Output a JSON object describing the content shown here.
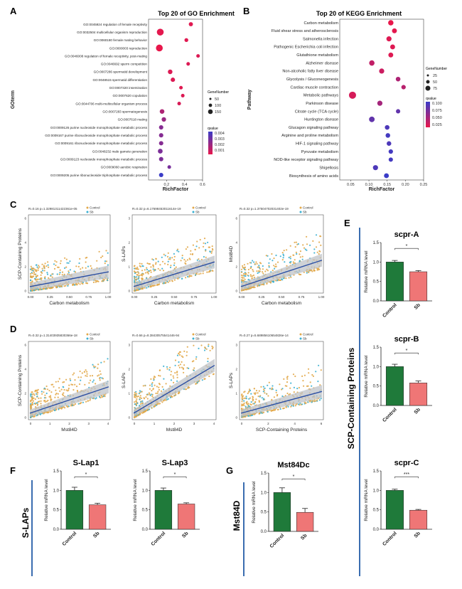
{
  "panels": {
    "A": "A",
    "B": "B",
    "C": "C",
    "D": "D",
    "E": "E",
    "F": "F",
    "G": "G"
  },
  "colors": {
    "qhigh": "#e8174b",
    "qlow": "#3a3cc7",
    "control_pt": "#e2a84a",
    "sb_pt": "#3bb0d2",
    "reg_line": "#2c4fa3",
    "ci": "#bfc3c8",
    "control_bar": "#1f7a3a",
    "sb_bar": "#ef7676",
    "divider": "#3a6db0"
  },
  "go": {
    "title": "Top 20 of GO Enrichment",
    "ylabel": "GOterm",
    "xlabel": "RichFactor",
    "xticks": [
      "0.2",
      "0.4",
      "0.6"
    ],
    "legend_size_title": "GeneNumber",
    "legend_sizes": [
      "50",
      "100",
      "150"
    ],
    "legend_color_title": "qvalue",
    "legend_colors": [
      "0.004",
      "0.003",
      "0.002",
      "0.001"
    ]
  },
  "kegg": {
    "title": "Top 20 of KEGG Enrichment",
    "ylabel": "Pathway",
    "xlabel": "RichFactor",
    "xticks": [
      "0.05",
      "0.10",
      "0.15",
      "0.20",
      "0.25"
    ],
    "legend_size_title": "GeneNumber",
    "legend_sizes": [
      "25",
      "50",
      "75"
    ],
    "legend_color_title": "qvalue",
    "legend_colors": [
      "0.100",
      "0.075",
      "0.050",
      "0.025"
    ]
  },
  "scatter_panels": [
    {
      "id": "C1",
      "stat": "R=0.16 p=1.32981311422361e-05",
      "xlabel": "Carbon metabolism",
      "ylabel": "SCP-Containing Proteins",
      "legend": [
        "Control",
        "Sb"
      ]
    },
    {
      "id": "C2",
      "stat": "R=0.32 p=6.17698453011614e-19",
      "xlabel": "Carbon metabolism",
      "ylabel": "S-LAPs",
      "legend": [
        "Control",
        "Sb"
      ]
    },
    {
      "id": "C3",
      "stat": "R=0.32 p=1.37504702031402e-19",
      "xlabel": "Carbon metabolism",
      "ylabel": "Mst84D",
      "legend": [
        "Control",
        "Sb"
      ]
    },
    {
      "id": "D1",
      "stat": "R=0.32 p=1.31403935830366e-18",
      "xlabel": "Mst84D",
      "ylabel": "SCP-Containing Proteins",
      "legend": [
        "Control",
        "Sb"
      ]
    },
    {
      "id": "D2",
      "stat": "R=0.66 p=8.38430575541446-94",
      "xlabel": "Mst84D",
      "ylabel": "S-LAPs",
      "legend": [
        "Control",
        "Sb"
      ]
    },
    {
      "id": "D3",
      "stat": "R=0.27 p=5.68985610654826e-14",
      "xlabel": "SCP-Containing Proteins",
      "ylabel": "S-LAPs",
      "legend": [
        "Control",
        "Sb"
      ]
    }
  ],
  "bar_common": {
    "ylabel": "Relative mRNA level",
    "categories": [
      "Control",
      "Sb"
    ]
  },
  "group_labels": {
    "scp": "SCP-Containing Proteins",
    "slaps": "S-LAPs",
    "mst": "Mst84D"
  },
  "chart_data": [
    {
      "type": "scatter",
      "title": "Top 20 of GO Enrichment",
      "xlabel": "RichFactor",
      "ylabel": "GOterm",
      "xlim": [
        0,
        0.6
      ],
      "categories": [
        "GO:0045924 regulation of female receptivity",
        "GO:0032504 multicellular organism reproduction",
        "GO:0060180 female mating behavior",
        "GO:0000003 reproduction",
        "GO:0046008 regulation of female receptivity, post-mating",
        "GO:0046692 sperm competition",
        "GO:0007286 spermatid development",
        "GO:0048515 spermatid differentiation",
        "GO:0007320 insemination",
        "GO:0007620 copulation",
        "GO:0044706 multi-multicellular organism process",
        "GO:0007283 spermatogenesis",
        "GO:0007618 mating",
        "GO:0009126 purine nucleoside monophosphate metabolic process",
        "GO:0009167 purine ribonucleoside monophosphate metabolic process",
        "GO:0009161 ribonucleoside monophosphate metabolic process",
        "GO:0048232 male gamete generation",
        "GO:0009123 nucleoside monophosphate metabolic process",
        "GO:0009060 aerobic respiration",
        "GO:0009205 purine ribonucleoside triphosphate metabolic process"
      ],
      "x": [
        0.47,
        0.13,
        0.42,
        0.12,
        0.55,
        0.44,
        0.24,
        0.27,
        0.36,
        0.38,
        0.34,
        0.15,
        0.17,
        0.14,
        0.14,
        0.14,
        0.13,
        0.14,
        0.23,
        0.14
      ],
      "gene_number": [
        35,
        160,
        25,
        160,
        20,
        20,
        50,
        40,
        20,
        20,
        20,
        50,
        45,
        40,
        40,
        40,
        55,
        40,
        20,
        40
      ],
      "qvalue": [
        0.0008,
        0.0007,
        0.0008,
        0.0006,
        0.0009,
        0.0009,
        0.0009,
        0.0009,
        0.0008,
        0.0009,
        0.001,
        0.002,
        0.0025,
        0.003,
        0.003,
        0.003,
        0.0032,
        0.0032,
        0.0033,
        0.0048
      ]
    },
    {
      "type": "scatter",
      "title": "Top 20 of KEGG Enrichment",
      "xlabel": "RichFactor",
      "ylabel": "Pathway",
      "xlim": [
        0.02,
        0.25
      ],
      "categories": [
        "Carbon metabolism",
        "Fluid shear stress and atherosclerosis",
        "Salmonella infection",
        "Pathogenic Escherichia coli infection",
        "Glutathione metabolism",
        "Alzheimer disease",
        "Non-alcoholic fatty liver disease",
        "Glycolysis / Gluconeogenesis",
        "Cardiac muscle contraction",
        "Metabolic pathways",
        "Parkinson disease",
        "Citrate cycle (TCA cycle)",
        "Huntington disease",
        "Glucagon signaling pathway",
        "Arginine and proline metabolism",
        "HIF-1 signaling pathway",
        "Pyruvate metabolism",
        "NOD-like receptor signaling pathway",
        "Shigellosis",
        "Biosynthesis of amino acids"
      ],
      "x": [
        0.16,
        0.17,
        0.155,
        0.165,
        0.16,
        0.108,
        0.135,
        0.18,
        0.195,
        0.055,
        0.13,
        0.18,
        0.108,
        0.15,
        0.152,
        0.155,
        0.16,
        0.16,
        0.118,
        0.148
      ],
      "gene_number": [
        40,
        30,
        35,
        30,
        30,
        40,
        35,
        25,
        22,
        90,
        35,
        20,
        45,
        25,
        25,
        25,
        22,
        20,
        35,
        30
      ],
      "qvalue": [
        0.01,
        0.012,
        0.015,
        0.015,
        0.015,
        0.03,
        0.025,
        0.04,
        0.035,
        0.02,
        0.045,
        0.08,
        0.08,
        0.09,
        0.095,
        0.09,
        0.095,
        0.095,
        0.09,
        0.1
      ]
    },
    {
      "type": "bar",
      "title": "scpr-A",
      "categories": [
        "Control",
        "Sb"
      ],
      "values": [
        1.0,
        0.75
      ],
      "errors": [
        0.04,
        0.03
      ],
      "ylim": [
        0,
        1.5
      ],
      "significance": "*"
    },
    {
      "type": "bar",
      "title": "scpr-B",
      "categories": [
        "Control",
        "Sb"
      ],
      "values": [
        1.0,
        0.58
      ],
      "errors": [
        0.06,
        0.05
      ],
      "ylim": [
        0,
        1.5
      ],
      "significance": "*"
    },
    {
      "type": "bar",
      "title": "scpr-C",
      "categories": [
        "Control",
        "Sb"
      ],
      "values": [
        1.0,
        0.49
      ],
      "errors": [
        0.03,
        0.02
      ],
      "ylim": [
        0,
        1.5
      ],
      "significance": "***"
    },
    {
      "type": "bar",
      "title": "S-Lap1",
      "categories": [
        "Control",
        "Sb"
      ],
      "values": [
        1.0,
        0.63
      ],
      "errors": [
        0.08,
        0.04
      ],
      "ylim": [
        0,
        1.5
      ],
      "significance": "*"
    },
    {
      "type": "bar",
      "title": "S-Lap3",
      "categories": [
        "Control",
        "Sb"
      ],
      "values": [
        1.0,
        0.65
      ],
      "errors": [
        0.06,
        0.03
      ],
      "ylim": [
        0,
        1.5
      ],
      "significance": "*"
    },
    {
      "type": "bar",
      "title": "Mst84Dc",
      "categories": [
        "Control",
        "Sb"
      ],
      "values": [
        1.0,
        0.49
      ],
      "errors": [
        0.12,
        0.1
      ],
      "ylim": [
        0,
        1.5
      ],
      "significance": "*"
    }
  ]
}
